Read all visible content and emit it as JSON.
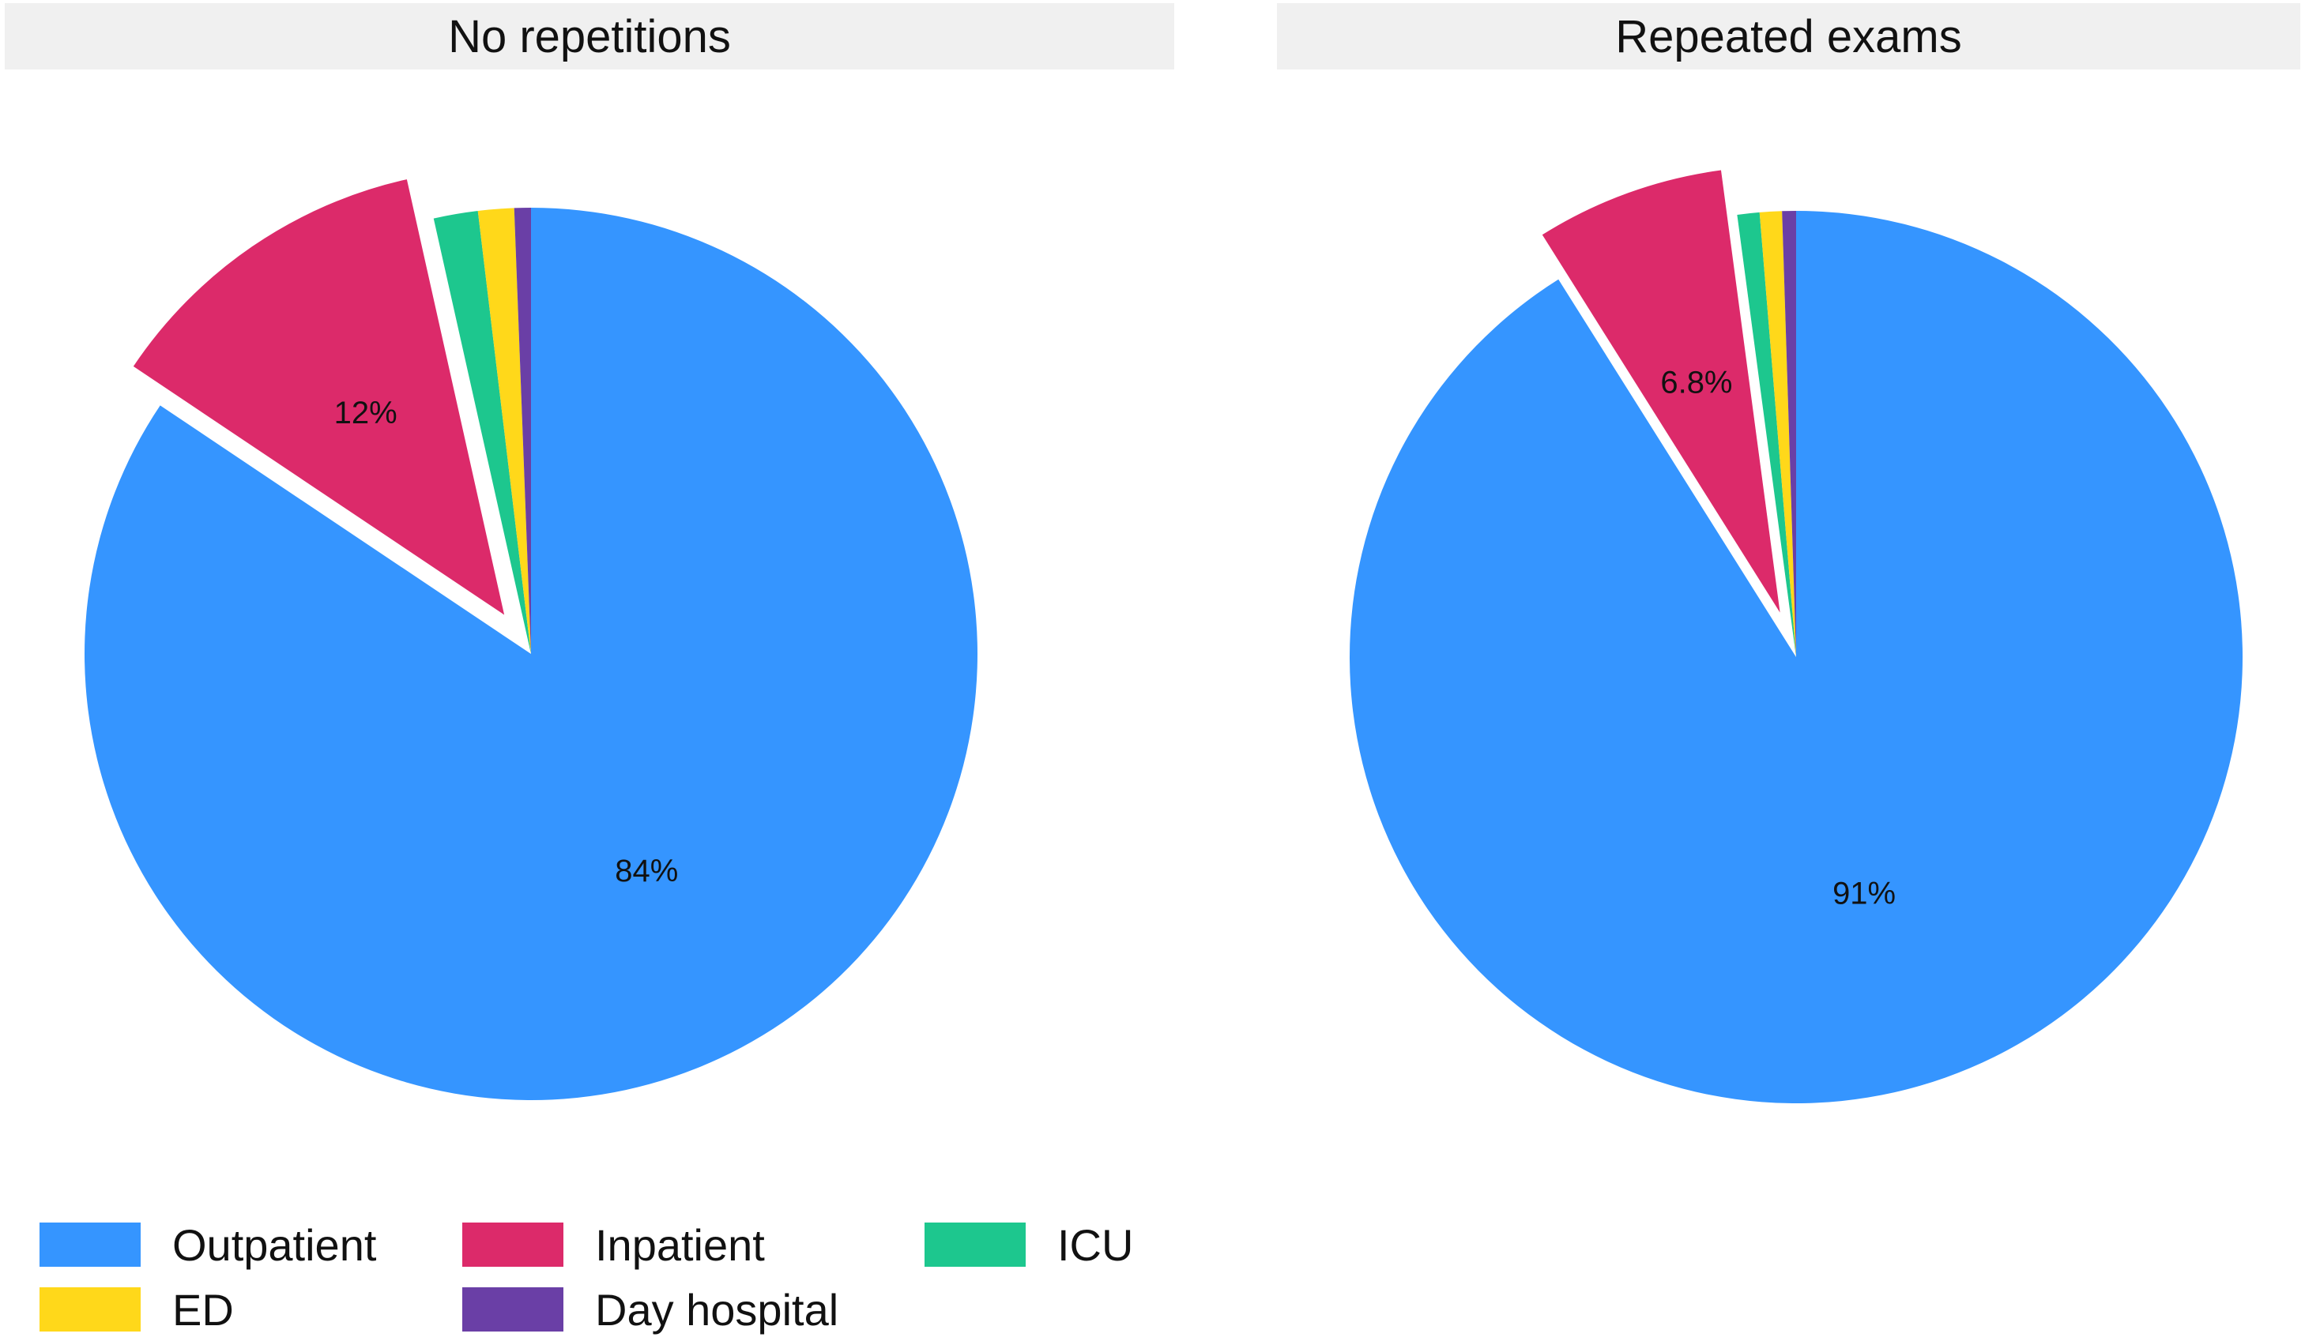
{
  "chart_data": {
    "type": "pie",
    "categories": [
      "Outpatient",
      "Inpatient",
      "ICU",
      "ED",
      "Day hospital"
    ],
    "colors": {
      "Outpatient": "#3595FF",
      "Inpatient": "#DC2A6A",
      "ICU": "#1DC78E",
      "ED": "#FFD81A",
      "Day hospital": "#6A3FA6"
    },
    "facets": [
      {
        "title": "No repetitions",
        "values": [
          84.4,
          12.1,
          1.6,
          1.3,
          0.6
        ],
        "labels": [
          "84%",
          "12%",
          "",
          "",
          ""
        ],
        "exploded": [
          "Inpatient"
        ]
      },
      {
        "title": "Repeated exams",
        "values": [
          90.7,
          6.8,
          0.8,
          0.8,
          0.5
        ],
        "labels": [
          "91%",
          "6.8%",
          "",
          "",
          ""
        ],
        "exploded": [
          "Inpatient"
        ]
      }
    ],
    "legend": {
      "position": "bottom-left",
      "entries": [
        "Outpatient",
        "Inpatient",
        "ICU",
        "ED",
        "Day hospital"
      ]
    }
  }
}
